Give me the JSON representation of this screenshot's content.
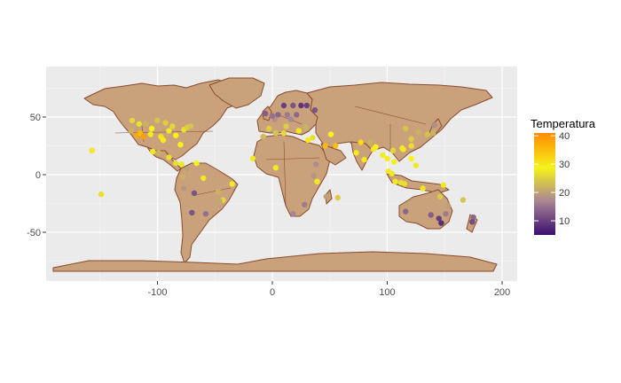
{
  "chart_data": {
    "type": "scatter",
    "subtype": "world-map-points",
    "title": "",
    "xlabel": "",
    "ylabel": "",
    "xlim": [
      -190,
      200
    ],
    "ylim": [
      -92,
      92
    ],
    "x_ticks": [
      -100,
      0,
      100,
      200
    ],
    "y_ticks": [
      -50,
      0,
      50
    ],
    "x_tick_labels": [
      "-100",
      "0",
      "100",
      "200"
    ],
    "y_tick_labels": [
      "-50",
      "0",
      "50"
    ],
    "grid": true,
    "panel_background": "#EBEBEB",
    "land_fill": "#C9A27C",
    "land_border": "#8B4A2B",
    "legend": {
      "title": "Temperatura",
      "position": "right",
      "min": 5,
      "max": 41,
      "ticks": [
        10,
        20,
        30,
        40
      ],
      "tick_labels": [
        "10",
        "20",
        "30",
        "40"
      ],
      "colors": [
        "#3B0F6F",
        "#A88494",
        "#F6F21A",
        "#FF8C00"
      ]
    },
    "points": [
      {
        "lon": -122,
        "lat": 47,
        "t": 26
      },
      {
        "lon": -118,
        "lat": 34,
        "t": 38
      },
      {
        "lon": -115,
        "lat": 36,
        "t": 36
      },
      {
        "lon": -112,
        "lat": 33,
        "t": 39
      },
      {
        "lon": -105,
        "lat": 40,
        "t": 29
      },
      {
        "lon": -97,
        "lat": 33,
        "t": 31
      },
      {
        "lon": -95,
        "lat": 30,
        "t": 30
      },
      {
        "lon": -90,
        "lat": 38,
        "t": 28
      },
      {
        "lon": -87,
        "lat": 42,
        "t": 26
      },
      {
        "lon": -84,
        "lat": 34,
        "t": 29
      },
      {
        "lon": -80,
        "lat": 26,
        "t": 29
      },
      {
        "lon": -77,
        "lat": 39,
        "t": 27
      },
      {
        "lon": -74,
        "lat": 41,
        "t": 25
      },
      {
        "lon": -71,
        "lat": 42,
        "t": 24
      },
      {
        "lon": -93,
        "lat": 45,
        "t": 25
      },
      {
        "lon": -100,
        "lat": 47,
        "t": 24
      },
      {
        "lon": -106,
        "lat": 35,
        "t": 30
      },
      {
        "lon": -110,
        "lat": 44,
        "t": 22
      },
      {
        "lon": -116,
        "lat": 44,
        "t": 27
      },
      {
        "lon": -123,
        "lat": 38,
        "t": 22
      },
      {
        "lon": -104,
        "lat": 20,
        "t": 28
      },
      {
        "lon": -99,
        "lat": 19,
        "t": 22
      },
      {
        "lon": -90,
        "lat": 15,
        "t": 27
      },
      {
        "lon": -84,
        "lat": 10,
        "t": 27
      },
      {
        "lon": -79,
        "lat": 9,
        "t": 28
      },
      {
        "lon": -74,
        "lat": 5,
        "t": 20
      },
      {
        "lon": -78,
        "lat": -2,
        "t": 22
      },
      {
        "lon": -66,
        "lat": 10,
        "t": 29
      },
      {
        "lon": -77,
        "lat": -12,
        "t": 19
      },
      {
        "lon": -68,
        "lat": -16,
        "t": 12
      },
      {
        "lon": -47,
        "lat": -15,
        "t": 22
      },
      {
        "lon": -43,
        "lat": -22,
        "t": 26
      },
      {
        "lon": -46,
        "lat": -23,
        "t": 21
      },
      {
        "lon": -58,
        "lat": -34,
        "t": 15
      },
      {
        "lon": -70,
        "lat": -33,
        "t": 12
      },
      {
        "lon": -35,
        "lat": -8,
        "t": 28
      },
      {
        "lon": -60,
        "lat": -3,
        "t": 28
      },
      {
        "lon": -157,
        "lat": 21,
        "t": 28
      },
      {
        "lon": -149,
        "lat": -17,
        "t": 27
      },
      {
        "lon": -3,
        "lat": 40,
        "t": 25
      },
      {
        "lon": 2,
        "lat": 48,
        "t": 18
      },
      {
        "lon": 0,
        "lat": 51,
        "t": 15
      },
      {
        "lon": 13,
        "lat": 52,
        "t": 16
      },
      {
        "lon": 12,
        "lat": 42,
        "t": 25
      },
      {
        "lon": 23,
        "lat": 38,
        "t": 28
      },
      {
        "lon": 18,
        "lat": 60,
        "t": 12
      },
      {
        "lon": 10,
        "lat": 60,
        "t": 10
      },
      {
        "lon": 25,
        "lat": 60,
        "t": 9
      },
      {
        "lon": 30,
        "lat": 60,
        "t": 10
      },
      {
        "lon": 37,
        "lat": 56,
        "t": 12
      },
      {
        "lon": 21,
        "lat": 52,
        "t": 14
      },
      {
        "lon": 16,
        "lat": 48,
        "t": 17
      },
      {
        "lon": 5,
        "lat": 52,
        "t": 14
      },
      {
        "lon": -6,
        "lat": 53,
        "t": 13
      },
      {
        "lon": 29,
        "lat": 41,
        "t": 22
      },
      {
        "lon": 31,
        "lat": 30,
        "t": 30
      },
      {
        "lon": 35,
        "lat": 32,
        "t": 27
      },
      {
        "lon": 46,
        "lat": 25,
        "t": 36
      },
      {
        "lon": 55,
        "lat": 25,
        "t": 35
      },
      {
        "lon": 51,
        "lat": 35,
        "t": 29
      },
      {
        "lon": -8,
        "lat": 33,
        "t": 23
      },
      {
        "lon": 3,
        "lat": 36,
        "t": 24
      },
      {
        "lon": 10,
        "lat": 36,
        "t": 26
      },
      {
        "lon": -17,
        "lat": 14,
        "t": 28
      },
      {
        "lon": 3,
        "lat": 6,
        "t": 28
      },
      {
        "lon": 38,
        "lat": 9,
        "t": 18
      },
      {
        "lon": 36,
        "lat": -1,
        "t": 19
      },
      {
        "lon": 39,
        "lat": -6,
        "t": 28
      },
      {
        "lon": 28,
        "lat": -26,
        "t": 16
      },
      {
        "lon": 18,
        "lat": -34,
        "t": 17
      },
      {
        "lon": 47,
        "lat": -19,
        "t": 20
      },
      {
        "lon": 57,
        "lat": -20,
        "t": 25
      },
      {
        "lon": 73,
        "lat": 19,
        "t": 30
      },
      {
        "lon": 77,
        "lat": 28,
        "t": 32
      },
      {
        "lon": 80,
        "lat": 13,
        "t": 30
      },
      {
        "lon": 88,
        "lat": 22,
        "t": 30
      },
      {
        "lon": 90,
        "lat": 24,
        "t": 29
      },
      {
        "lon": 85,
        "lat": 28,
        "t": 22
      },
      {
        "lon": 100,
        "lat": 14,
        "t": 30
      },
      {
        "lon": 106,
        "lat": 11,
        "t": 29
      },
      {
        "lon": 105,
        "lat": 21,
        "t": 26
      },
      {
        "lon": 96,
        "lat": 17,
        "t": 28
      },
      {
        "lon": 101,
        "lat": 3,
        "t": 28
      },
      {
        "lon": 104,
        "lat": 1,
        "t": 28
      },
      {
        "lon": 107,
        "lat": -6,
        "t": 28
      },
      {
        "lon": 112,
        "lat": -7,
        "t": 27
      },
      {
        "lon": 115,
        "lat": -8,
        "t": 27
      },
      {
        "lon": 114,
        "lat": 22,
        "t": 28
      },
      {
        "lon": 113,
        "lat": 23,
        "t": 28
      },
      {
        "lon": 121,
        "lat": 31,
        "t": 25
      },
      {
        "lon": 116,
        "lat": 40,
        "t": 24
      },
      {
        "lon": 121,
        "lat": 25,
        "t": 27
      },
      {
        "lon": 121,
        "lat": 14,
        "t": 29
      },
      {
        "lon": 127,
        "lat": 37,
        "t": 22
      },
      {
        "lon": 135,
        "lat": 35,
        "t": 24
      },
      {
        "lon": 140,
        "lat": 36,
        "t": 22
      },
      {
        "lon": 141,
        "lat": 43,
        "t": 18
      },
      {
        "lon": 125,
        "lat": 8,
        "t": 28
      },
      {
        "lon": 116,
        "lat": -32,
        "t": 14
      },
      {
        "lon": 138,
        "lat": -35,
        "t": 13
      },
      {
        "lon": 145,
        "lat": -38,
        "t": 10
      },
      {
        "lon": 151,
        "lat": -34,
        "t": 16
      },
      {
        "lon": 153,
        "lat": -27,
        "t": 20
      },
      {
        "lon": 147,
        "lat": -42,
        "t": 8
      },
      {
        "lon": 146,
        "lat": -19,
        "t": 25
      },
      {
        "lon": 131,
        "lat": -12,
        "t": 28
      },
      {
        "lon": 166,
        "lat": -22,
        "t": 24
      },
      {
        "lon": 175,
        "lat": -37,
        "t": 14
      },
      {
        "lon": 174,
        "lat": -41,
        "t": 11
      },
      {
        "lon": 149,
        "lat": -9,
        "t": 28
      }
    ]
  }
}
